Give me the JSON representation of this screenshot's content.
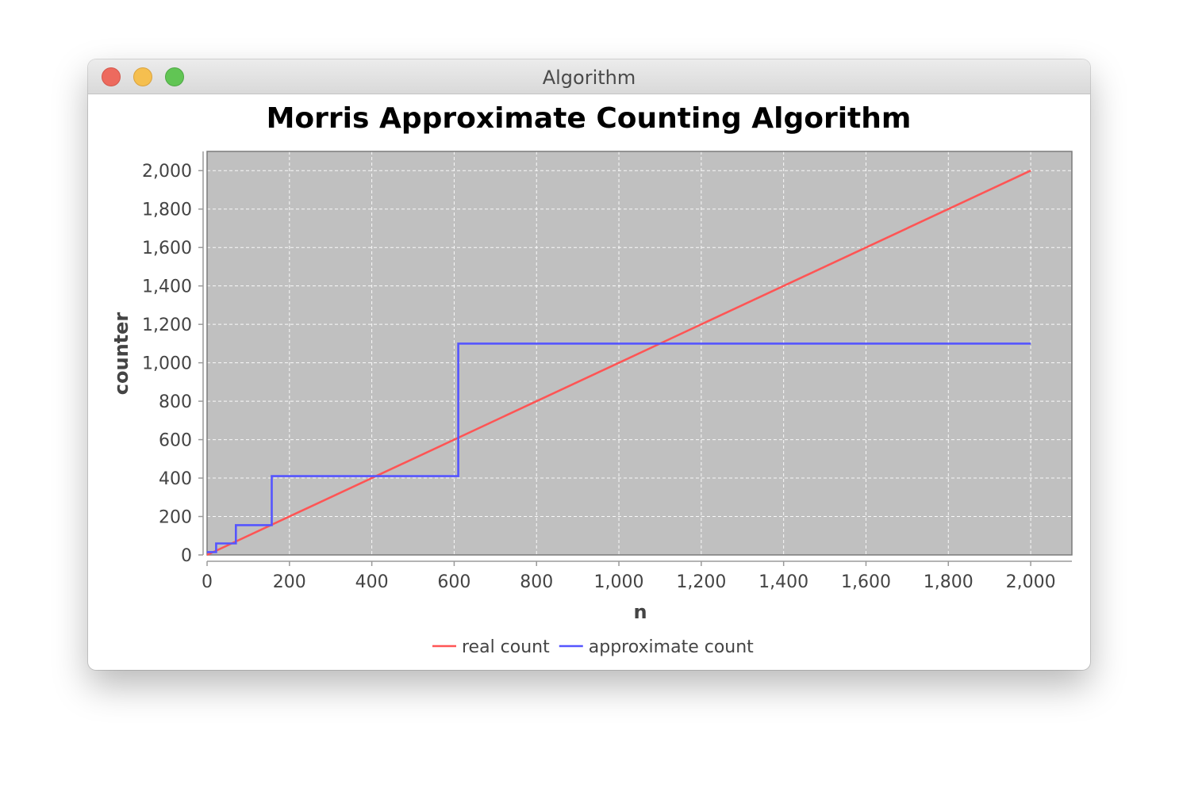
{
  "window": {
    "title": "Algorithm",
    "controls": {
      "close": "#ed6a5e",
      "minimize": "#f5bf4f",
      "zoom": "#61c554"
    }
  },
  "chart_data": {
    "type": "line",
    "title": "Morris Approximate Counting Algorithm",
    "xlabel": "n",
    "ylabel": "counter",
    "xlim": [
      0,
      2100
    ],
    "ylim": [
      0,
      2100
    ],
    "xticks": [
      0,
      200,
      400,
      600,
      800,
      1000,
      1200,
      1400,
      1600,
      1800,
      2000
    ],
    "yticks": [
      0,
      200,
      400,
      600,
      800,
      1000,
      1200,
      1400,
      1600,
      1800,
      2000
    ],
    "xtick_labels": [
      "0",
      "200",
      "400",
      "600",
      "800",
      "1,000",
      "1,200",
      "1,400",
      "1,600",
      "1,800",
      "2,000"
    ],
    "ytick_labels": [
      "0",
      "200",
      "400",
      "600",
      "800",
      "1,000",
      "1,200",
      "1,400",
      "1,600",
      "1,800",
      "2,000"
    ],
    "grid": true,
    "legend_position": "bottom",
    "plot_background": "#c0c0c0",
    "series": [
      {
        "name": "real count",
        "color": "#ff5555",
        "x": [
          0,
          2000
        ],
        "y": [
          0,
          2000
        ]
      },
      {
        "name": "approximate count",
        "color": "#5555ff",
        "step": true,
        "x": [
          0,
          22,
          70,
          157,
          610,
          2000
        ],
        "y": [
          15,
          60,
          155,
          410,
          1100,
          1100
        ]
      }
    ]
  }
}
